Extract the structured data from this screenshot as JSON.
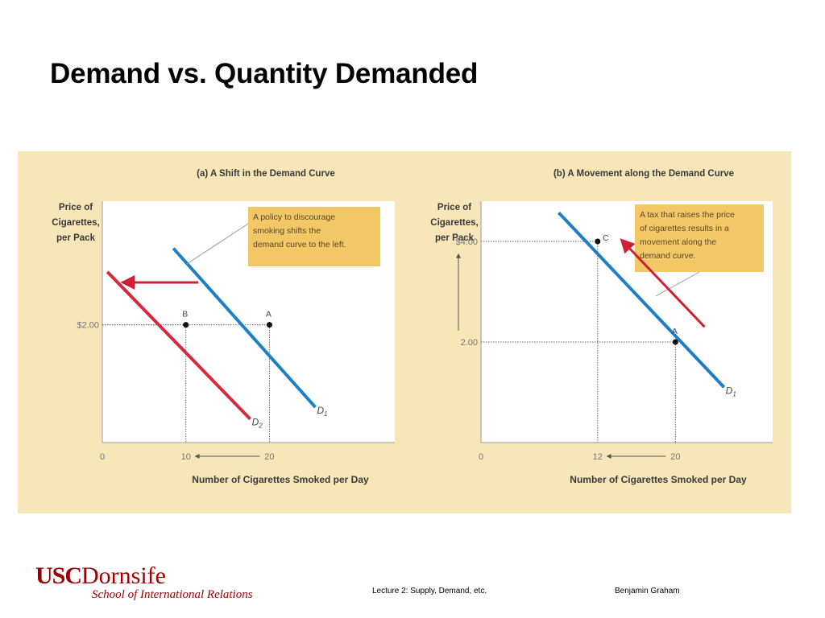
{
  "slide": {
    "title": "Demand vs. Quantity Demanded"
  },
  "footer": {
    "logo_usc": "USC",
    "logo_dornsife": "Dornsife",
    "logo_school": "School of International Relations",
    "lecture": "Lecture 2: Supply, Demand, etc.",
    "author": "Benjamin Graham"
  },
  "colors": {
    "panel_bg": "#f6e6b8",
    "plot_bg": "#ffffff",
    "d1_line": "#1f7fc6",
    "d2_line": "#d42a3a",
    "arrow": "#cf1f35",
    "callout_bg": "#f2c766"
  },
  "chart_data": [
    {
      "type": "line",
      "title": "(a) A Shift in the Demand Curve",
      "ylabel": [
        "Price of",
        "Cigarettes,",
        "per Pack"
      ],
      "xlabel": "Number of Cigarettes Smoked per Day",
      "xlim": [
        0,
        35
      ],
      "ylim": [
        0,
        4.1
      ],
      "origin_label": "0",
      "x_ticks": [
        {
          "value": 10,
          "label": "10"
        },
        {
          "value": 20,
          "label": "20"
        }
      ],
      "y_ticks": [
        {
          "value": 2,
          "label": "$2.00"
        }
      ],
      "series": [
        {
          "name": "D1",
          "label_main": "D",
          "label_sub": "1",
          "x": [
            8.5,
            25.5
          ],
          "y": [
            3.3,
            0.6
          ],
          "color": "#1f7fc6"
        },
        {
          "name": "D2",
          "label_main": "D",
          "label_sub": "2",
          "x": [
            0.6,
            17.7
          ],
          "y": [
            2.9,
            0.4
          ],
          "color": "#d42a3a"
        }
      ],
      "points": [
        {
          "label": "A",
          "x": 20,
          "y": 2
        },
        {
          "label": "B",
          "x": 10,
          "y": 2
        }
      ],
      "annotations": {
        "callout_lines": [
          "A policy to discourage",
          "smoking shifts the",
          "demand curve to the left."
        ],
        "shift_arrow": {
          "x_from": 11.5,
          "x_to": 2.5,
          "y": 2.72
        },
        "axis_arrow_from": 20,
        "axis_arrow_to": 10
      }
    },
    {
      "type": "line",
      "title": "(b) A Movement along the Demand Curve",
      "ylabel": [
        "Price of",
        "Cigarettes,",
        "per Pack"
      ],
      "xlabel": "Number of Cigarettes Smoked per Day",
      "xlim": [
        0,
        30
      ],
      "ylim": [
        0,
        4.8
      ],
      "origin_label": "0",
      "x_ticks": [
        {
          "value": 12,
          "label": "12"
        },
        {
          "value": 20,
          "label": "20"
        }
      ],
      "y_ticks": [
        {
          "value": 2,
          "label": "2.00"
        },
        {
          "value": 4,
          "label": "$4.00"
        }
      ],
      "series": [
        {
          "name": "D1",
          "label_main": "D",
          "label_sub": "1",
          "x": [
            8,
            25
          ],
          "y": [
            4.57,
            1.1
          ],
          "color": "#1f7fc6"
        }
      ],
      "points": [
        {
          "label": "C",
          "x": 12,
          "y": 4
        },
        {
          "label": "A",
          "x": 20,
          "y": 2
        }
      ],
      "annotations": {
        "callout_lines": [
          "A tax that raises the price",
          "of cigarettes results in a",
          "movement along the",
          "demand curve."
        ],
        "move_arrow": {
          "x_from": 23,
          "y_from": 2.3,
          "x_to": 14.5,
          "y_to": 4.02
        },
        "axis_arrow_from": 20,
        "axis_arrow_to": 12,
        "price_arrow_from": 2,
        "price_arrow_to": 4
      }
    }
  ]
}
